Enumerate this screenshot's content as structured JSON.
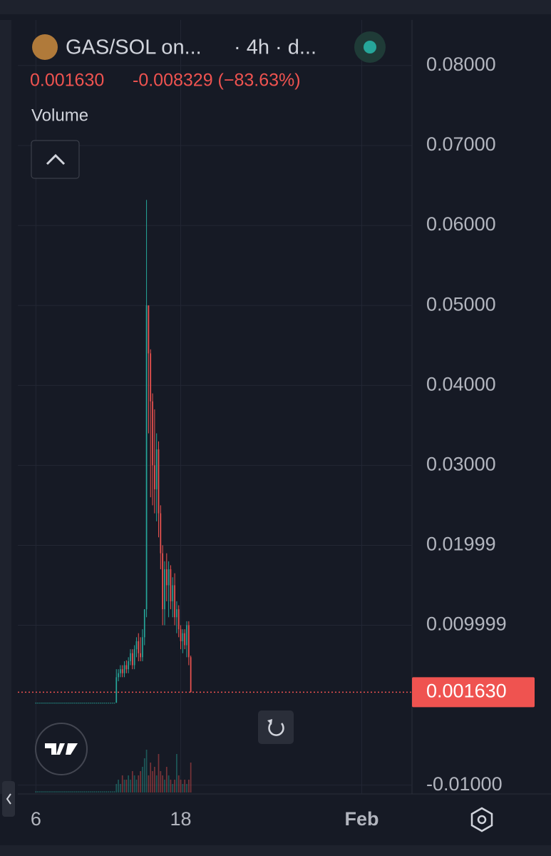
{
  "chart_data": {
    "type": "candlestick",
    "title": "GAS/SOL on...",
    "subtitle": "· 4h · d...",
    "last_price": "0.001630",
    "change": "-0.008329 (−83.63%)",
    "volume_label": "Volume",
    "up_color": "#26a69a",
    "down_color": "#ef5350",
    "xlim": [
      -9,
      187
    ],
    "xticks": [
      {
        "value": 0,
        "label": "6"
      },
      {
        "value": 72,
        "label": "18"
      },
      {
        "value": 162,
        "label": "Feb"
      }
    ],
    "ylim": [
      -0.0111,
      0.0857
    ],
    "yticks": [
      {
        "value": 0.08,
        "label": "0.08000"
      },
      {
        "value": 0.07,
        "label": "0.07000"
      },
      {
        "value": 0.06,
        "label": "0.06000"
      },
      {
        "value": 0.05,
        "label": "0.05000"
      },
      {
        "value": 0.04,
        "label": "0.04000"
      },
      {
        "value": 0.03,
        "label": "0.03000"
      },
      0.01999,
      0.009999,
      {
        "value": -0.01,
        "label": "-0.01000"
      }
    ],
    "grid": true,
    "open": [
      0.0003,
      0.0003,
      0.0003,
      0.0003,
      0.0003,
      0.0003,
      0.0003,
      0.0003,
      0.0003,
      0.0003,
      0.0003,
      0.0003,
      0.0003,
      0.0003,
      0.0003,
      0.0003,
      0.0003,
      0.0003,
      0.0003,
      0.0003,
      0.0003,
      0.0003,
      0.0003,
      0.0003,
      0.0003,
      0.0003,
      0.0003,
      0.0003,
      0.0003,
      0.0003,
      0.0003,
      0.0003,
      0.0003,
      0.0003,
      0.0003,
      0.0003,
      0.0003,
      0.0003,
      0.0003,
      0.0003,
      0.0003,
      0.0035,
      0.004,
      0.0045,
      0.004,
      0.005,
      0.0045,
      0.0055,
      0.0065,
      0.005,
      0.007,
      0.008,
      0.0065,
      0.006,
      0.0085,
      0.012,
      0.05,
      0.044,
      0.038,
      0.03,
      0.027,
      0.032,
      0.024,
      0.019,
      0.012,
      0.017,
      0.015,
      0.017,
      0.013,
      0.015,
      0.011,
      0.012,
      0.0095,
      0.008,
      0.009,
      0.0075,
      0.01,
      0.006
    ],
    "high": [
      0.0003,
      0.0003,
      0.0003,
      0.0003,
      0.0003,
      0.0003,
      0.0003,
      0.0003,
      0.0003,
      0.0003,
      0.0003,
      0.0003,
      0.0003,
      0.0003,
      0.0003,
      0.0003,
      0.0003,
      0.0003,
      0.0003,
      0.0003,
      0.0003,
      0.0003,
      0.0003,
      0.0003,
      0.0003,
      0.0003,
      0.0003,
      0.0003,
      0.0003,
      0.0003,
      0.0003,
      0.0003,
      0.0003,
      0.0003,
      0.0003,
      0.0003,
      0.0003,
      0.0003,
      0.0003,
      0.0003,
      0.0045,
      0.0045,
      0.005,
      0.005,
      0.0055,
      0.0056,
      0.006,
      0.007,
      0.007,
      0.0075,
      0.0085,
      0.009,
      0.0085,
      0.0095,
      0.012,
      0.0632,
      0.05,
      0.0445,
      0.039,
      0.037,
      0.034,
      0.033,
      0.025,
      0.02,
      0.018,
      0.019,
      0.018,
      0.0175,
      0.016,
      0.0165,
      0.013,
      0.0125,
      0.01,
      0.0095,
      0.0095,
      0.0105,
      0.0105,
      0.0062
    ],
    "low": [
      0.0003,
      0.0003,
      0.0003,
      0.0003,
      0.0003,
      0.0003,
      0.0003,
      0.0003,
      0.0003,
      0.0003,
      0.0003,
      0.0003,
      0.0003,
      0.0003,
      0.0003,
      0.0003,
      0.0003,
      0.0003,
      0.0003,
      0.0003,
      0.0003,
      0.0003,
      0.0003,
      0.0003,
      0.0003,
      0.0003,
      0.0003,
      0.0003,
      0.0003,
      0.0003,
      0.0003,
      0.0003,
      0.0003,
      0.0003,
      0.0003,
      0.0003,
      0.0003,
      0.0003,
      0.0003,
      0.0003,
      0.0003,
      0.003,
      0.0035,
      0.0035,
      0.0035,
      0.004,
      0.004,
      0.005,
      0.0045,
      0.0045,
      0.006,
      0.0055,
      0.0055,
      0.0055,
      0.0075,
      0.011,
      0.034,
      0.026,
      0.025,
      0.024,
      0.023,
      0.021,
      0.017,
      0.01,
      0.01,
      0.013,
      0.011,
      0.012,
      0.011,
      0.01,
      0.009,
      0.0085,
      0.007,
      0.0065,
      0.007,
      0.006,
      0.005,
      0.0016
    ],
    "close": [
      0.0003,
      0.0003,
      0.0003,
      0.0003,
      0.0003,
      0.0003,
      0.0003,
      0.0003,
      0.0003,
      0.0003,
      0.0003,
      0.0003,
      0.0003,
      0.0003,
      0.0003,
      0.0003,
      0.0003,
      0.0003,
      0.0003,
      0.0003,
      0.0003,
      0.0003,
      0.0003,
      0.0003,
      0.0003,
      0.0003,
      0.0003,
      0.0003,
      0.0003,
      0.0003,
      0.0003,
      0.0003,
      0.0003,
      0.0003,
      0.0003,
      0.0003,
      0.0003,
      0.0003,
      0.0003,
      0.0003,
      0.0035,
      0.004,
      0.0045,
      0.004,
      0.005,
      0.0045,
      0.0055,
      0.0065,
      0.005,
      0.007,
      0.008,
      0.0065,
      0.006,
      0.0085,
      0.012,
      0.05,
      0.044,
      0.038,
      0.03,
      0.027,
      0.032,
      0.024,
      0.019,
      0.012,
      0.017,
      0.015,
      0.017,
      0.013,
      0.015,
      0.011,
      0.012,
      0.0095,
      0.008,
      0.009,
      0.0075,
      0.01,
      0.006,
      0.00163
    ],
    "volume": [
      0.3,
      0.3,
      0.3,
      0.3,
      0.3,
      0.3,
      0.3,
      0.3,
      0.3,
      0.3,
      0.3,
      0.3,
      0.3,
      0.3,
      0.3,
      0.3,
      0.3,
      0.3,
      0.3,
      0.3,
      0.3,
      0.3,
      0.3,
      0.3,
      0.3,
      0.3,
      0.3,
      0.3,
      0.3,
      0.3,
      0.3,
      0.3,
      0.3,
      0.3,
      0.3,
      0.3,
      0.3,
      0.3,
      0.3,
      0.3,
      2,
      3,
      2,
      4,
      3,
      3,
      4,
      3,
      5,
      4,
      3,
      4,
      5,
      6,
      8,
      10,
      4,
      7,
      5,
      6,
      4,
      9,
      5,
      4,
      3,
      6,
      4,
      3,
      2,
      3,
      9,
      4,
      3,
      2,
      3,
      2,
      3,
      7
    ]
  }
}
